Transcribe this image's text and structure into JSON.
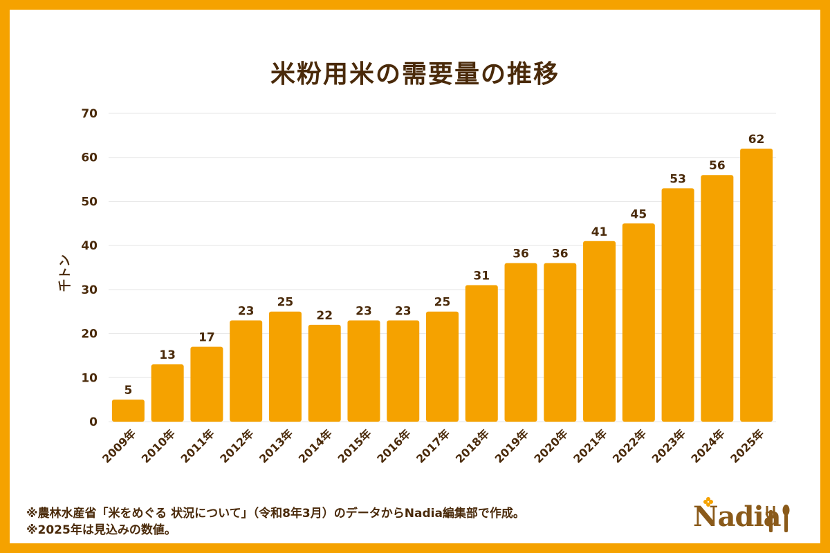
{
  "chart_data": {
    "type": "bar",
    "title": "米粉用米の需要量の推移",
    "ylabel": "千トン",
    "xlabel": "",
    "ylim": [
      0,
      70
    ],
    "yticks": [
      0,
      10,
      20,
      30,
      40,
      50,
      60,
      70
    ],
    "grid": true,
    "categories": [
      "2009年",
      "2010年",
      "2011年",
      "2012年",
      "2013年",
      "2014年",
      "2015年",
      "2016年",
      "2017年",
      "2018年",
      "2019年",
      "2020年",
      "2021年",
      "2022年",
      "2023年",
      "2024年",
      "2025年"
    ],
    "values": [
      5,
      13,
      17,
      23,
      25,
      22,
      23,
      23,
      25,
      31,
      36,
      36,
      41,
      45,
      53,
      56,
      62
    ],
    "bar_color": "#f5a200"
  },
  "notes": {
    "source": "※農林水産省「米をめぐる 状況について」（令和8年3月）のデータからNadia編集部で作成。",
    "forecast": "※2025年は見込みの数値。"
  },
  "logo": {
    "text": "Nadia",
    "icon": "cutlery-icon"
  },
  "colors": {
    "frame": "#f5a200",
    "text": "#4a2a0a",
    "grid": "#e6e6e6"
  }
}
